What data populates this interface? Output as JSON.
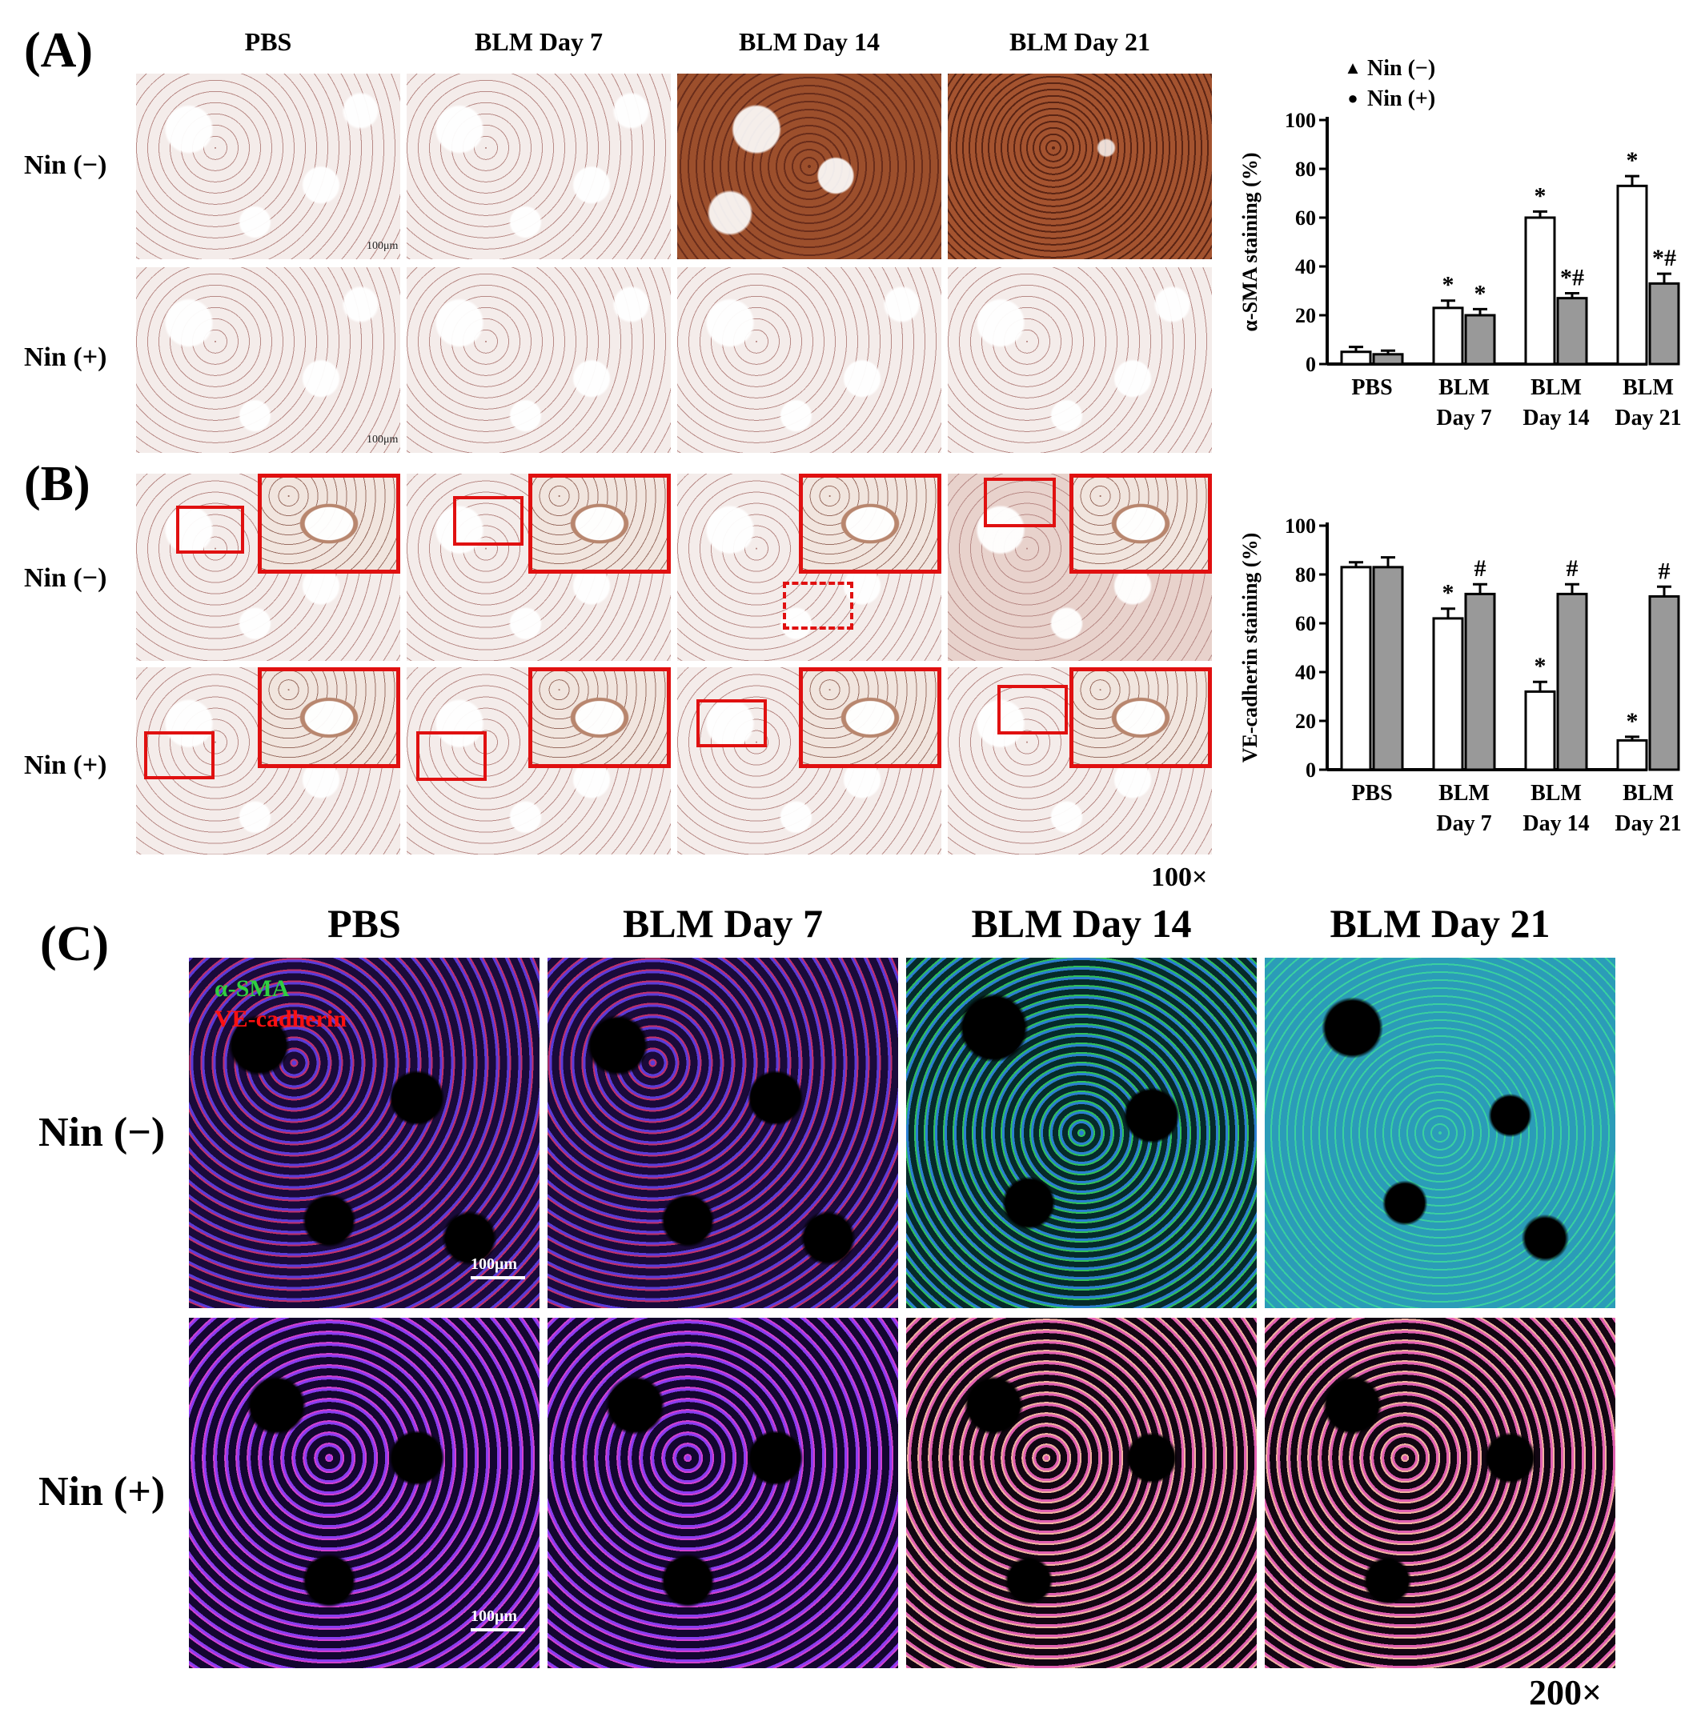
{
  "panels": {
    "A": {
      "label": "(A)",
      "columns": [
        "PBS",
        "BLM Day 7",
        "BLM Day 14",
        "BLM Day 21"
      ],
      "rows": [
        "Nin (−)",
        "Nin (+)"
      ],
      "scale_label": "100μm"
    },
    "B": {
      "label": "(B)",
      "rows": [
        "Nin (−)",
        "Nin (+)"
      ],
      "magnification": "100×"
    },
    "C": {
      "label": "(C)",
      "columns": [
        "PBS",
        "BLM Day 7",
        "BLM Day 14",
        "BLM Day 21"
      ],
      "rows": [
        "Nin (−)",
        "Nin (+)"
      ],
      "stain_labels": [
        "α-SMA",
        "VE-cadherin"
      ],
      "scale_label": "100μm",
      "magnification": "200×"
    }
  },
  "colors": {
    "series_nin_neg": "#ffffff",
    "series_nin_pos": "#999999",
    "zoom_box": "#e01010",
    "stain_green": "#2fd040",
    "stain_red": "#ff1010"
  },
  "chart_data": [
    {
      "type": "bar",
      "panel": "A",
      "title": "",
      "ylabel": "α-SMA staining (%)",
      "xlabel": "",
      "ylim": [
        0,
        100
      ],
      "yticks": [
        0,
        20,
        40,
        60,
        80,
        100
      ],
      "categories": [
        [
          "PBS"
        ],
        [
          "BLM",
          "Day 7"
        ],
        [
          "BLM",
          "Day 14"
        ],
        [
          "BLM",
          "Day 21"
        ]
      ],
      "legend": [
        "Nin (−)",
        "Nin (+)"
      ],
      "legend_markers": [
        "▲",
        "●"
      ],
      "legend_position": "top-right",
      "series": [
        {
          "name": "Nin (−)",
          "values": [
            5,
            23,
            60,
            73
          ],
          "errors": [
            2,
            3,
            2.5,
            4
          ],
          "annotations": [
            "",
            "*",
            "*",
            "*"
          ]
        },
        {
          "name": "Nin (+)",
          "values": [
            4,
            20,
            27,
            33
          ],
          "errors": [
            1.5,
            2.5,
            2,
            4
          ],
          "annotations": [
            "",
            "*",
            "*#",
            "*#"
          ]
        }
      ]
    },
    {
      "type": "bar",
      "panel": "B",
      "title": "",
      "ylabel": "VE-cadherin staining (%)",
      "xlabel": "",
      "ylim": [
        0,
        100
      ],
      "yticks": [
        0,
        20,
        40,
        60,
        80,
        100
      ],
      "categories": [
        [
          "PBS"
        ],
        [
          "BLM",
          "Day 7"
        ],
        [
          "BLM",
          "Day 14"
        ],
        [
          "BLM",
          "Day 21"
        ]
      ],
      "series": [
        {
          "name": "Nin (−)",
          "values": [
            83,
            62,
            32,
            12
          ],
          "errors": [
            2,
            4,
            4,
            1.5
          ],
          "annotations": [
            "",
            "*",
            "*",
            "*"
          ]
        },
        {
          "name": "Nin (+)",
          "values": [
            83,
            72,
            72,
            71
          ],
          "errors": [
            4,
            4,
            4,
            4
          ],
          "annotations": [
            "",
            "#",
            "#",
            "#"
          ]
        }
      ]
    }
  ]
}
